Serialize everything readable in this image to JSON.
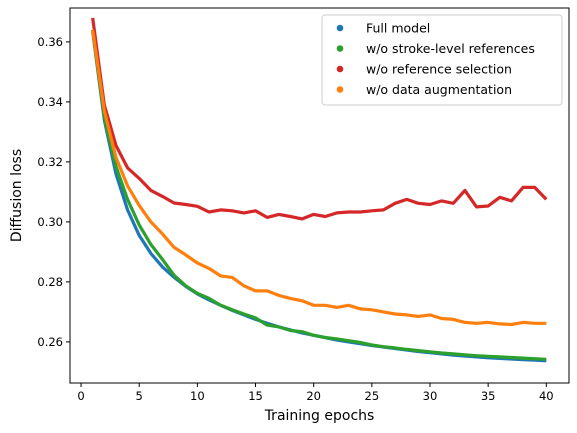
{
  "chart_data": {
    "type": "line",
    "title": "",
    "xlabel": "Training epochs",
    "ylabel": "Diffusion loss",
    "xlim": [
      -0.95,
      41.95
    ],
    "ylim": [
      0.2463,
      0.3713
    ],
    "xticks": [
      0,
      5,
      10,
      15,
      20,
      25,
      30,
      35,
      40
    ],
    "yticks": [
      0.26,
      0.28,
      0.3,
      0.32,
      0.34,
      0.36
    ],
    "ytick_labels": [
      "0.26",
      "0.28",
      "0.30",
      "0.32",
      "0.34",
      "0.36"
    ],
    "grid": false,
    "legend_position": "top-right",
    "x": [
      1,
      2,
      3,
      4,
      5,
      6,
      7,
      8,
      9,
      10,
      11,
      12,
      13,
      14,
      15,
      16,
      17,
      18,
      19,
      20,
      21,
      22,
      23,
      24,
      25,
      26,
      27,
      28,
      29,
      30,
      31,
      32,
      33,
      34,
      35,
      36,
      37,
      38,
      39,
      40
    ],
    "series": [
      {
        "name": "Full model",
        "color": "#1f77b4",
        "values": [
          0.3635,
          0.334,
          0.316,
          0.304,
          0.2955,
          0.2895,
          0.285,
          0.2815,
          0.2785,
          0.276,
          0.274,
          0.2722,
          0.2705,
          0.269,
          0.2675,
          0.2662,
          0.265,
          0.264,
          0.263,
          0.2622,
          0.2614,
          0.2606,
          0.26,
          0.2594,
          0.2588,
          0.2583,
          0.2578,
          0.2573,
          0.2568,
          0.2564,
          0.256,
          0.2556,
          0.2553,
          0.255,
          0.2547,
          0.2545,
          0.2543,
          0.2541,
          0.2539,
          0.2537
        ]
      },
      {
        "name": "w/o stroke-level references",
        "color": "#2ca02c",
        "values": [
          0.364,
          0.335,
          0.3185,
          0.3075,
          0.299,
          0.2925,
          0.2875,
          0.2822,
          0.2787,
          0.2762,
          0.2745,
          0.2722,
          0.2707,
          0.2693,
          0.268,
          0.2656,
          0.265,
          0.2638,
          0.2634,
          0.2622,
          0.2615,
          0.261,
          0.2604,
          0.2598,
          0.259,
          0.2584,
          0.258,
          0.2575,
          0.2571,
          0.2567,
          0.2563,
          0.256,
          0.2557,
          0.2554,
          0.2552,
          0.255,
          0.2548,
          0.2546,
          0.2544,
          0.2542
        ]
      },
      {
        "name": "w/o reference selection",
        "color": "#d62728",
        "values": [
          0.368,
          0.339,
          0.3255,
          0.318,
          0.3145,
          0.3105,
          0.3085,
          0.3063,
          0.3058,
          0.3052,
          0.3033,
          0.304,
          0.3037,
          0.303,
          0.3037,
          0.3015,
          0.3025,
          0.3018,
          0.301,
          0.3025,
          0.3018,
          0.303,
          0.3033,
          0.3033,
          0.3037,
          0.304,
          0.3062,
          0.3075,
          0.3062,
          0.3058,
          0.307,
          0.3062,
          0.3105,
          0.305,
          0.3053,
          0.3082,
          0.307,
          0.3115,
          0.3115,
          0.3075
        ]
      },
      {
        "name": "w/o data augmentation",
        "color": "#ff7f0e",
        "values": [
          0.364,
          0.337,
          0.3215,
          0.312,
          0.3055,
          0.3,
          0.296,
          0.2915,
          0.289,
          0.2863,
          0.2845,
          0.282,
          0.2815,
          0.2787,
          0.277,
          0.277,
          0.2755,
          0.2745,
          0.2737,
          0.2722,
          0.2722,
          0.2715,
          0.2722,
          0.271,
          0.2707,
          0.27,
          0.2693,
          0.269,
          0.2685,
          0.269,
          0.2678,
          0.2675,
          0.2665,
          0.2662,
          0.2665,
          0.266,
          0.2658,
          0.2665,
          0.2662,
          0.2662
        ]
      }
    ]
  }
}
